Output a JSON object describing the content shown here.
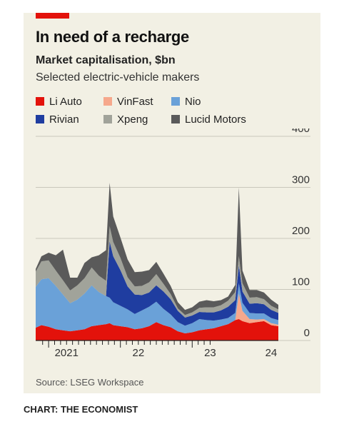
{
  "header": {
    "title": "In need of a recharge",
    "subtitle": "Market capitalisation, $bn",
    "subtitle2": "Selected electric-vehicle makers"
  },
  "legend": [
    {
      "name": "Li Auto",
      "color": "#e3120b"
    },
    {
      "name": "VinFast",
      "color": "#f6a88c"
    },
    {
      "name": "Nio",
      "color": "#6aa1d8"
    },
    {
      "name": "Rivian",
      "color": "#1f3da0"
    },
    {
      "name": "Xpeng",
      "color": "#a1a39a"
    },
    {
      "name": "Lucid Motors",
      "color": "#5a5a5a"
    }
  ],
  "source": "Source: LSEG Workspace",
  "footer": "CHART: THE ECONOMIST",
  "chart_data": {
    "type": "area",
    "stacked": true,
    "x_unit": "year (decimal)",
    "x": [
      2020.82,
      2020.9,
      2021.0,
      2021.1,
      2021.2,
      2021.3,
      2021.4,
      2021.5,
      2021.6,
      2021.7,
      2021.8,
      2021.85,
      2021.9,
      2022.0,
      2022.1,
      2022.2,
      2022.3,
      2022.4,
      2022.5,
      2022.6,
      2022.7,
      2022.8,
      2022.9,
      2023.0,
      2023.1,
      2023.2,
      2023.3,
      2023.4,
      2023.5,
      2023.6,
      2023.65,
      2023.7,
      2023.8,
      2023.9,
      2024.0,
      2024.1,
      2024.2
    ],
    "series": [
      {
        "name": "Li Auto",
        "values": [
          25,
          30,
          27,
          22,
          20,
          18,
          20,
          22,
          28,
          30,
          32,
          34,
          30,
          28,
          26,
          22,
          24,
          28,
          36,
          30,
          26,
          18,
          14,
          16,
          20,
          22,
          24,
          28,
          32,
          40,
          42,
          38,
          34,
          36,
          38,
          30,
          28
        ]
      },
      {
        "name": "VinFast",
        "values": [
          0,
          0,
          0,
          0,
          0,
          0,
          0,
          0,
          0,
          0,
          0,
          0,
          0,
          0,
          0,
          0,
          0,
          0,
          0,
          0,
          0,
          0,
          0,
          0,
          0,
          0,
          0,
          0,
          0,
          0,
          50,
          20,
          8,
          5,
          4,
          4,
          3
        ]
      },
      {
        "name": "Nio",
        "values": [
          80,
          90,
          95,
          85,
          70,
          55,
          60,
          70,
          80,
          65,
          55,
          50,
          45,
          40,
          35,
          30,
          35,
          38,
          40,
          32,
          25,
          18,
          15,
          18,
          22,
          18,
          15,
          13,
          12,
          14,
          20,
          16,
          12,
          12,
          11,
          10,
          9
        ]
      },
      {
        "name": "Rivian",
        "values": [
          0,
          0,
          0,
          0,
          0,
          0,
          0,
          0,
          0,
          0,
          0,
          110,
          90,
          70,
          45,
          38,
          30,
          28,
          32,
          34,
          30,
          22,
          16,
          15,
          14,
          15,
          16,
          18,
          22,
          25,
          35,
          22,
          18,
          20,
          18,
          16,
          14
        ]
      },
      {
        "name": "Xpeng",
        "values": [
          30,
          35,
          35,
          30,
          28,
          25,
          28,
          30,
          35,
          32,
          30,
          30,
          28,
          24,
          18,
          16,
          18,
          20,
          22,
          15,
          10,
          5,
          5,
          6,
          8,
          10,
          10,
          10,
          12,
          16,
          18,
          16,
          12,
          12,
          10,
          8,
          7
        ]
      },
      {
        "name": "Lucid Motors",
        "values": [
          5,
          10,
          15,
          30,
          60,
          25,
          15,
          30,
          20,
          40,
          60,
          85,
          50,
          40,
          35,
          28,
          28,
          24,
          24,
          20,
          16,
          12,
          10,
          10,
          12,
          14,
          12,
          10,
          8,
          14,
          135,
          25,
          15,
          14,
          13,
          12,
          9
        ]
      }
    ],
    "xlim": [
      2020.82,
      2024.2
    ],
    "ylim": [
      0,
      400
    ],
    "yticks": [
      0,
      100,
      200,
      300,
      400
    ],
    "x_tick_labels": [
      {
        "x": 2021.25,
        "label": "2021"
      },
      {
        "x": 2022.25,
        "label": "22"
      },
      {
        "x": 2023.25,
        "label": "23"
      },
      {
        "x": 2024.1,
        "label": "24"
      }
    ],
    "grid": true,
    "y_axis_position": "right"
  }
}
